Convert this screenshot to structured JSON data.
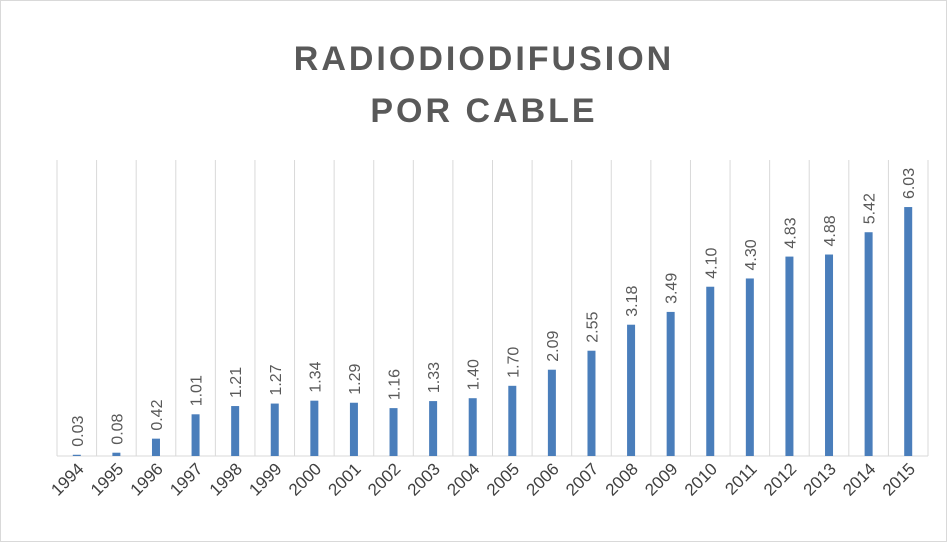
{
  "chart_data": {
    "type": "bar",
    "title": [
      "RADIODIODIFUSION",
      "POR CABLE"
    ],
    "categories": [
      "1994",
      "1995",
      "1996",
      "1997",
      "1998",
      "1999",
      "2000",
      "2001",
      "2002",
      "2003",
      "2004",
      "2005",
      "2006",
      "2007",
      "2008",
      "2009",
      "2010",
      "2011",
      "2012",
      "2013",
      "2014",
      "2015"
    ],
    "values": [
      0.03,
      0.08,
      0.42,
      1.01,
      1.21,
      1.27,
      1.34,
      1.29,
      1.16,
      1.33,
      1.4,
      1.7,
      2.09,
      2.55,
      3.18,
      3.49,
      4.1,
      4.3,
      4.83,
      4.88,
      5.42,
      6.03
    ],
    "value_labels": [
      "0.03",
      "0.08",
      "0.42",
      "1.01",
      "1.21",
      "1.27",
      "1.34",
      "1.29",
      "1.16",
      "1.33",
      "1.40",
      "1.70",
      "2.09",
      "2.55",
      "3.18",
      "3.49",
      "4.10",
      "4.30",
      "4.83",
      "4.88",
      "5.42",
      "6.03"
    ],
    "color": "#4a7ebb",
    "ylim": [
      0,
      7
    ]
  }
}
